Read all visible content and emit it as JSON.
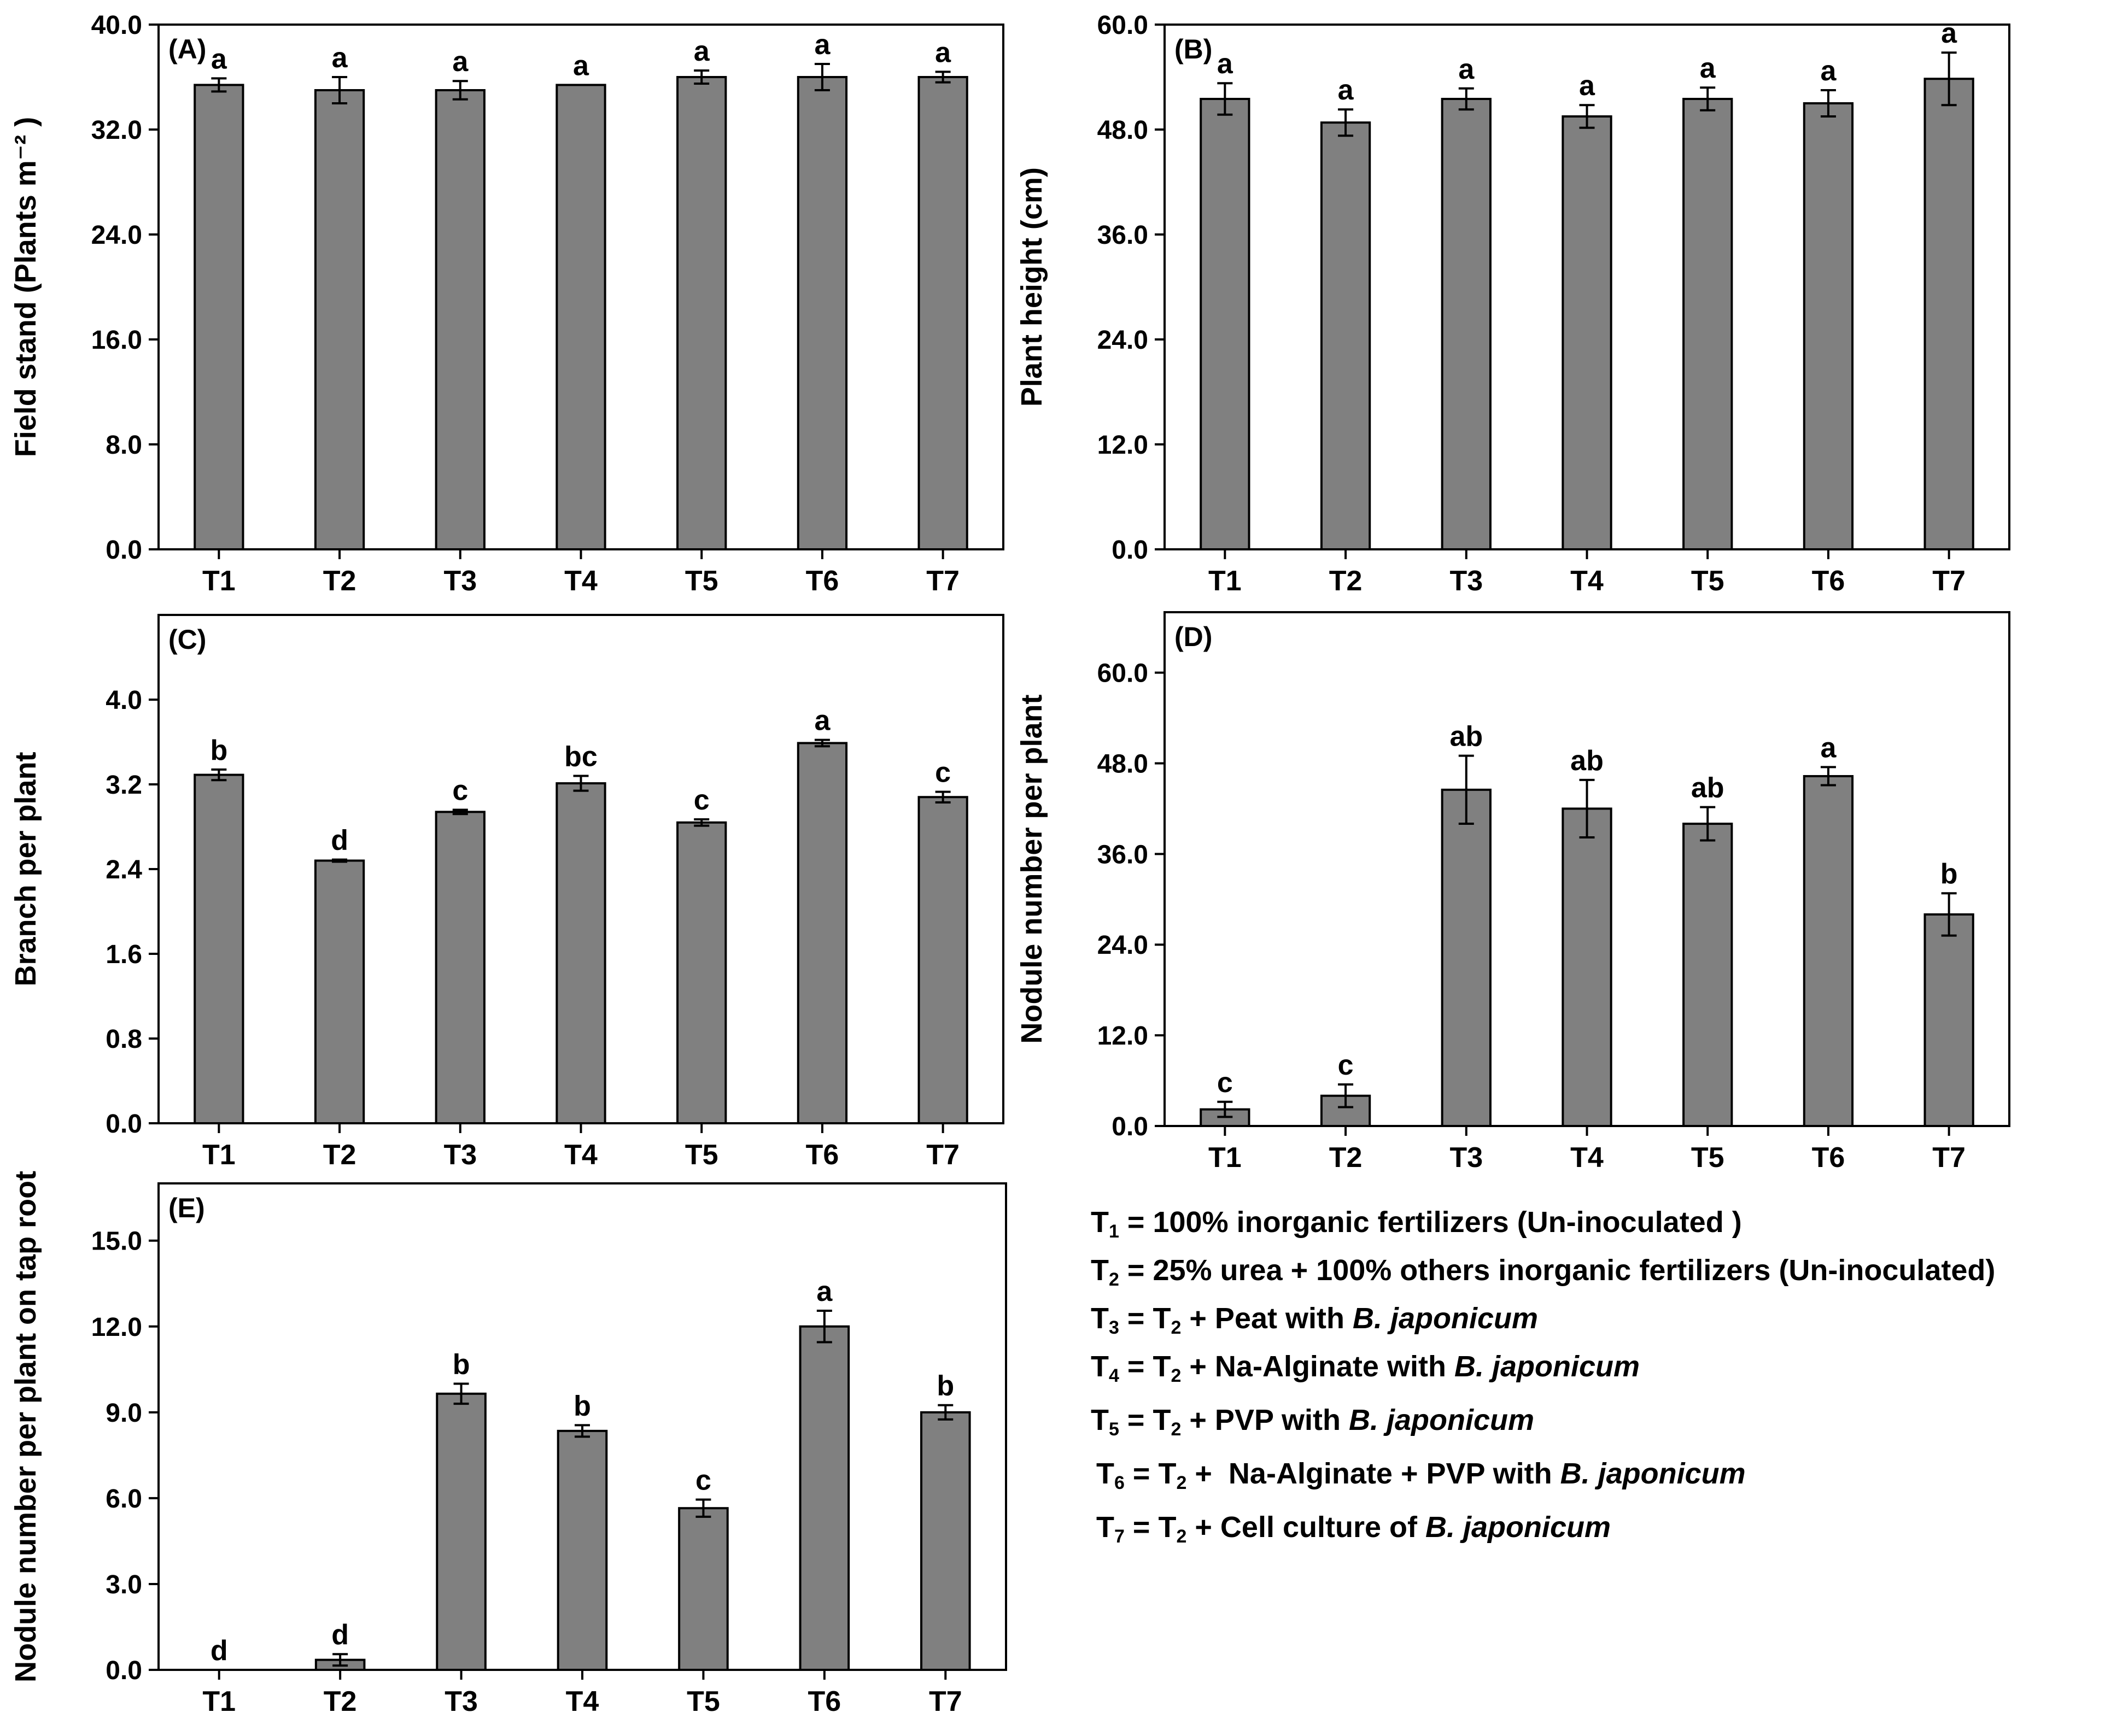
{
  "colors": {
    "bar": "#808080",
    "axis": "#000000",
    "background": "#ffffff"
  },
  "chart_data": [
    {
      "type": "bar",
      "panel": "(A)",
      "categories": [
        "T1",
        "T2",
        "T3",
        "T4",
        "T5",
        "T6",
        "T7"
      ],
      "values": [
        35.4,
        35.0,
        35.0,
        35.4,
        36.0,
        36.0,
        36.0
      ],
      "errors": [
        0.5,
        1.0,
        0.7,
        0.0,
        0.5,
        1.0,
        0.4
      ],
      "letters": [
        "a",
        "a",
        "a",
        "a",
        "a",
        "a",
        "a"
      ],
      "ylabel": "Field stand (Plants m⁻² )",
      "ylim": [
        0,
        40
      ],
      "yticks": [
        "0.0",
        "8.0",
        "16.0",
        "24.0",
        "32.0",
        "40.0"
      ],
      "grid": false
    },
    {
      "type": "bar",
      "panel": "(B)",
      "categories": [
        "T1",
        "T2",
        "T3",
        "T4",
        "T5",
        "T6",
        "T7"
      ],
      "values": [
        51.5,
        48.8,
        51.5,
        49.5,
        51.5,
        51.0,
        53.8
      ],
      "errors": [
        1.8,
        1.5,
        1.2,
        1.3,
        1.3,
        1.5,
        3.0
      ],
      "letters": [
        "a",
        "a",
        "a",
        "a",
        "a",
        "a",
        "a"
      ],
      "ylabel": "Plant height (cm)",
      "ylim": [
        0,
        60
      ],
      "yticks": [
        "0.0",
        "12.0",
        "24.0",
        "36.0",
        "48.0",
        "60.0"
      ],
      "grid": false
    },
    {
      "type": "bar",
      "panel": "(C)",
      "categories": [
        "T1",
        "T2",
        "T3",
        "T4",
        "T5",
        "T6",
        "T7"
      ],
      "values": [
        3.29,
        2.48,
        2.94,
        3.21,
        2.84,
        3.59,
        3.08
      ],
      "errors": [
        0.05,
        0.01,
        0.02,
        0.07,
        0.03,
        0.03,
        0.05
      ],
      "letters": [
        "b",
        "d",
        "c",
        "bc",
        "c",
        "a",
        "c"
      ],
      "ylabel": "Branch per plant",
      "ylim": [
        0,
        4.8
      ],
      "yticks": [
        "0.0",
        "0.8",
        "1.6",
        "2.4",
        "3.2",
        "4.0"
      ],
      "grid": false
    },
    {
      "type": "bar",
      "panel": "(D)",
      "categories": [
        "T1",
        "T2",
        "T3",
        "T4",
        "T5",
        "T6",
        "T7"
      ],
      "values": [
        2.2,
        4.0,
        44.5,
        42.0,
        40.0,
        46.3,
        28.0
      ],
      "errors": [
        1.0,
        1.5,
        4.5,
        3.8,
        2.2,
        1.2,
        2.8
      ],
      "letters": [
        "c",
        "c",
        "ab",
        "ab",
        "ab",
        "a",
        "b"
      ],
      "ylabel": "Nodule number per plant",
      "ylim": [
        0,
        68
      ],
      "yticks": [
        "0.0",
        "12.0",
        "24.0",
        "36.0",
        "48.0",
        "60.0"
      ],
      "grid": false
    },
    {
      "type": "bar",
      "panel": "(E)",
      "categories": [
        "T1",
        "T2",
        "T3",
        "T4",
        "T5",
        "T6",
        "T7"
      ],
      "values": [
        0.0,
        0.35,
        9.65,
        8.35,
        5.65,
        12.0,
        9.0
      ],
      "errors": [
        0.0,
        0.2,
        0.35,
        0.2,
        0.3,
        0.55,
        0.25
      ],
      "letters": [
        "d",
        "d",
        "b",
        "b",
        "c",
        "a",
        "b"
      ],
      "ylabel": "Nodule number per plant on tap root",
      "ylim": [
        0,
        17
      ],
      "yticks": [
        "0.0",
        "3.0",
        "6.0",
        "9.0",
        "12.0",
        "15.0"
      ],
      "grid": false
    }
  ],
  "legend": [
    {
      "sym": "T",
      "sub": "1",
      "eq": " = ",
      "text": "100% inorganic fertilizers (Un-inoculated )"
    },
    {
      "sym": "T",
      "sub": "2",
      "eq": " = ",
      "text": "25% urea + 100% others inorganic fertilizers (Un-inoculated)"
    },
    {
      "sym": "T",
      "sub": "3",
      "eq": " = ",
      "ref": "T",
      "refsub": "2",
      "text": " + Peat with ",
      "italic": "B. japonicum"
    },
    {
      "sym": "T",
      "sub": "4",
      "eq": " = ",
      "ref": "T",
      "refsub": "2",
      "text": " + Na-Alginate with ",
      "italic": "B. japonicum"
    },
    {
      "sym": "T",
      "sub": "5",
      "eq": " = ",
      "ref": "T",
      "refsub": "2",
      "text": " + PVP with ",
      "italic": "B. japonicum"
    },
    {
      "sym": "T",
      "sub": "6",
      "eq": " = ",
      "ref": "T",
      "refsub": "2",
      "text": " +  Na-Alginate + PVP with ",
      "italic": "B. japonicum"
    },
    {
      "sym": "T",
      "sub": "7",
      "eq": " = ",
      "ref": "T",
      "refsub": "2",
      "text": " + Cell culture of ",
      "italic": "B. japonicum"
    }
  ]
}
